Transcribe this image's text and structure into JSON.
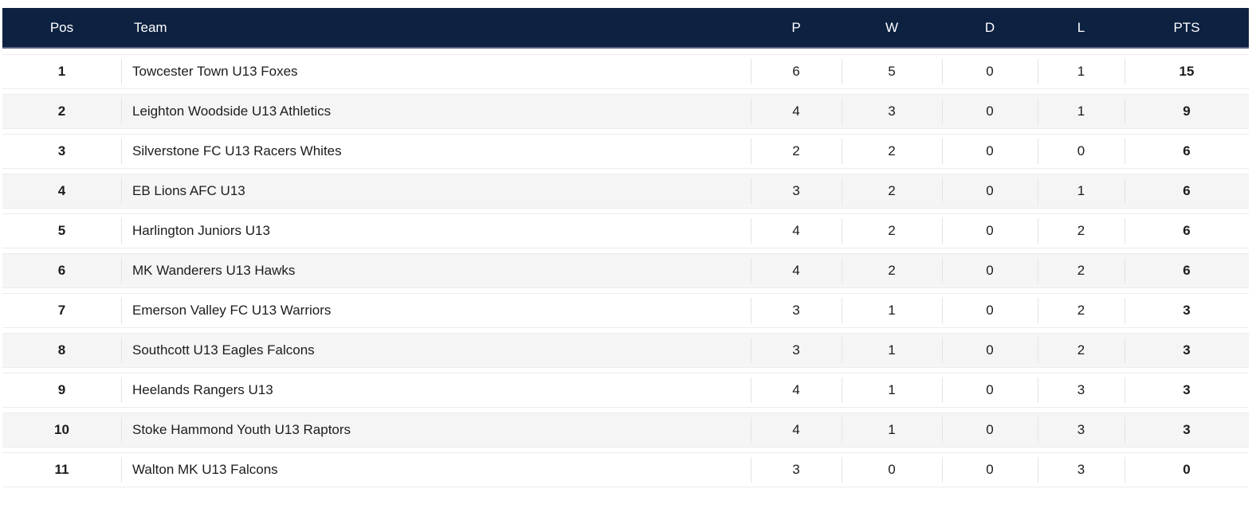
{
  "league_table": {
    "columns": [
      {
        "key": "pos",
        "label": "Pos"
      },
      {
        "key": "team",
        "label": "Team"
      },
      {
        "key": "p",
        "label": "P"
      },
      {
        "key": "w",
        "label": "W"
      },
      {
        "key": "d",
        "label": "D"
      },
      {
        "key": "l",
        "label": "L"
      },
      {
        "key": "pts",
        "label": "PTS"
      }
    ],
    "rows": [
      {
        "pos": "1",
        "team": "Towcester Town U13 Foxes",
        "p": "6",
        "w": "5",
        "d": "0",
        "l": "1",
        "pts": "15"
      },
      {
        "pos": "2",
        "team": "Leighton Woodside U13 Athletics",
        "p": "4",
        "w": "3",
        "d": "0",
        "l": "1",
        "pts": "9"
      },
      {
        "pos": "3",
        "team": "Silverstone FC U13 Racers Whites",
        "p": "2",
        "w": "2",
        "d": "0",
        "l": "0",
        "pts": "6"
      },
      {
        "pos": "4",
        "team": "EB Lions AFC U13",
        "p": "3",
        "w": "2",
        "d": "0",
        "l": "1",
        "pts": "6"
      },
      {
        "pos": "5",
        "team": "Harlington Juniors U13",
        "p": "4",
        "w": "2",
        "d": "0",
        "l": "2",
        "pts": "6"
      },
      {
        "pos": "6",
        "team": "MK Wanderers U13 Hawks",
        "p": "4",
        "w": "2",
        "d": "0",
        "l": "2",
        "pts": "6"
      },
      {
        "pos": "7",
        "team": "Emerson Valley FC U13 Warriors",
        "p": "3",
        "w": "1",
        "d": "0",
        "l": "2",
        "pts": "3"
      },
      {
        "pos": "8",
        "team": "Southcott U13 Eagles Falcons",
        "p": "3",
        "w": "1",
        "d": "0",
        "l": "2",
        "pts": "3"
      },
      {
        "pos": "9",
        "team": "Heelands Rangers U13",
        "p": "4",
        "w": "1",
        "d": "0",
        "l": "3",
        "pts": "3"
      },
      {
        "pos": "10",
        "team": "Stoke Hammond Youth U13 Raptors",
        "p": "4",
        "w": "1",
        "d": "0",
        "l": "3",
        "pts": "3"
      },
      {
        "pos": "11",
        "team": "Walton MK U13 Falcons",
        "p": "3",
        "w": "0",
        "d": "0",
        "l": "3",
        "pts": "0"
      }
    ]
  },
  "colors": {
    "header_bg": "#0d2141",
    "header_text": "#ffffff",
    "header_border": "#5a6482",
    "row_bg": "#ffffff",
    "row_alt_bg": "#f5f5f5",
    "row_text": "#1c1c1c",
    "row_border": "#ececec",
    "divider": "#e4e4e4"
  }
}
